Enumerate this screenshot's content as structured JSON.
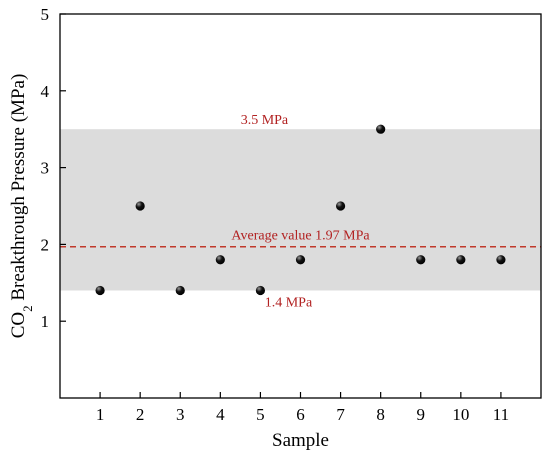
{
  "chart_data": {
    "type": "scatter",
    "x": [
      1,
      2,
      3,
      4,
      5,
      6,
      7,
      8,
      9,
      10,
      11
    ],
    "y": [
      1.4,
      2.5,
      1.4,
      1.8,
      1.4,
      1.8,
      2.5,
      3.5,
      1.8,
      1.8,
      1.8
    ],
    "xlabel": "Sample",
    "ylabel_main": "CO",
    "ylabel_sub": "2",
    "ylabel_rest": " Breakthrough Pressure (MPa)",
    "xlim": [
      0,
      12
    ],
    "ylim": [
      0,
      5
    ],
    "xticks": [
      1,
      2,
      3,
      4,
      5,
      6,
      7,
      8,
      9,
      10,
      11
    ],
    "yticks": [
      1,
      2,
      3,
      4,
      5
    ],
    "band": {
      "min": 1.4,
      "max": 3.5,
      "color": "#dcdcdc"
    },
    "average": {
      "value": 1.97,
      "label": "Average value 1.97 MPa",
      "color": "#c0392b"
    },
    "annotations": {
      "upper": "3.5 MPa",
      "lower": "1.4 MPa"
    },
    "grid": false,
    "marker_color": "#111111"
  }
}
